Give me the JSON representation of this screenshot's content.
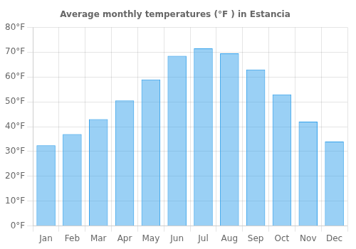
{
  "chart_data": {
    "type": "bar",
    "title": "Average monthly temperatures (°F ) in Estancia",
    "categories": [
      "Jan",
      "Feb",
      "Mar",
      "Apr",
      "May",
      "Jun",
      "Jul",
      "Aug",
      "Sep",
      "Oct",
      "Nov",
      "Dec"
    ],
    "values": [
      32.5,
      37,
      43,
      50.5,
      59,
      68.5,
      71.5,
      69.5,
      63,
      53,
      42,
      34
    ],
    "ylim": [
      0,
      80
    ],
    "yticks": [
      {
        "value": 0,
        "label": "0°F"
      },
      {
        "value": 10,
        "label": "10°F"
      },
      {
        "value": 20,
        "label": "20°F"
      },
      {
        "value": 30,
        "label": "30°F"
      },
      {
        "value": 40,
        "label": "40°F"
      },
      {
        "value": 50,
        "label": "50°F"
      },
      {
        "value": 60,
        "label": "60°F"
      },
      {
        "value": 70,
        "label": "70°F"
      },
      {
        "value": 80,
        "label": "80°F"
      }
    ],
    "grid": true
  }
}
